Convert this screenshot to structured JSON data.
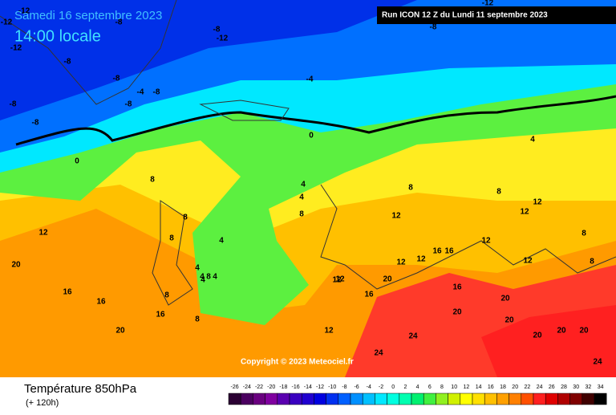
{
  "header": {
    "date": "Samedi 16 septembre 2023",
    "time": "14:00 locale",
    "run": "Run ICON 12 Z du Lundi 11 septembre 2023"
  },
  "footer": {
    "title": "Température 850hPa",
    "lead": "(+ 120h)",
    "copyright": "Copyright © 2023 Meteociel.fr"
  },
  "contour_labels": [
    "-12",
    "-8",
    "-12",
    "-8",
    "-12",
    "-8",
    "-8",
    "-8",
    "-8",
    "-4",
    "-8",
    "-4",
    "-8",
    "-12",
    "-8",
    "-12",
    "0",
    "0",
    "4",
    "8",
    "4",
    "4",
    "8",
    "8",
    "8",
    "12",
    "12",
    "12",
    "16",
    "12",
    "12",
    "12",
    "12",
    "16",
    "4",
    "4",
    "8",
    "4",
    "4",
    "8",
    "12",
    "12",
    "16",
    "16",
    "20",
    "20",
    "20",
    "24",
    "24",
    "20",
    "20",
    "20",
    "20",
    "24",
    "12",
    "16",
    "20",
    "8",
    "4",
    "8",
    "8",
    "12",
    "16",
    "16",
    "20",
    "8",
    "8"
  ],
  "legend": {
    "ticks": [
      -26,
      -24,
      -22,
      -20,
      -18,
      -16,
      -14,
      -12,
      -10,
      -8,
      -6,
      -4,
      -2,
      0,
      2,
      4,
      6,
      8,
      10,
      12,
      14,
      16,
      18,
      20,
      22,
      24,
      26,
      28,
      30,
      32,
      34
    ],
    "colors": [
      "#2b0033",
      "#4b0060",
      "#6a0080",
      "#8000a0",
      "#5a00b0",
      "#3a00c0",
      "#2000d0",
      "#0000e0",
      "#0030f0",
      "#0060ff",
      "#0090ff",
      "#00c0ff",
      "#00e8ff",
      "#00ffe0",
      "#00ffb0",
      "#00f070",
      "#40f040",
      "#90f020",
      "#d0f000",
      "#ffff00",
      "#ffe000",
      "#ffc000",
      "#ffa000",
      "#ff8000",
      "#ff5000",
      "#ff2020",
      "#e00000",
      "#b00000",
      "#800000",
      "#400000",
      "#000000"
    ]
  }
}
